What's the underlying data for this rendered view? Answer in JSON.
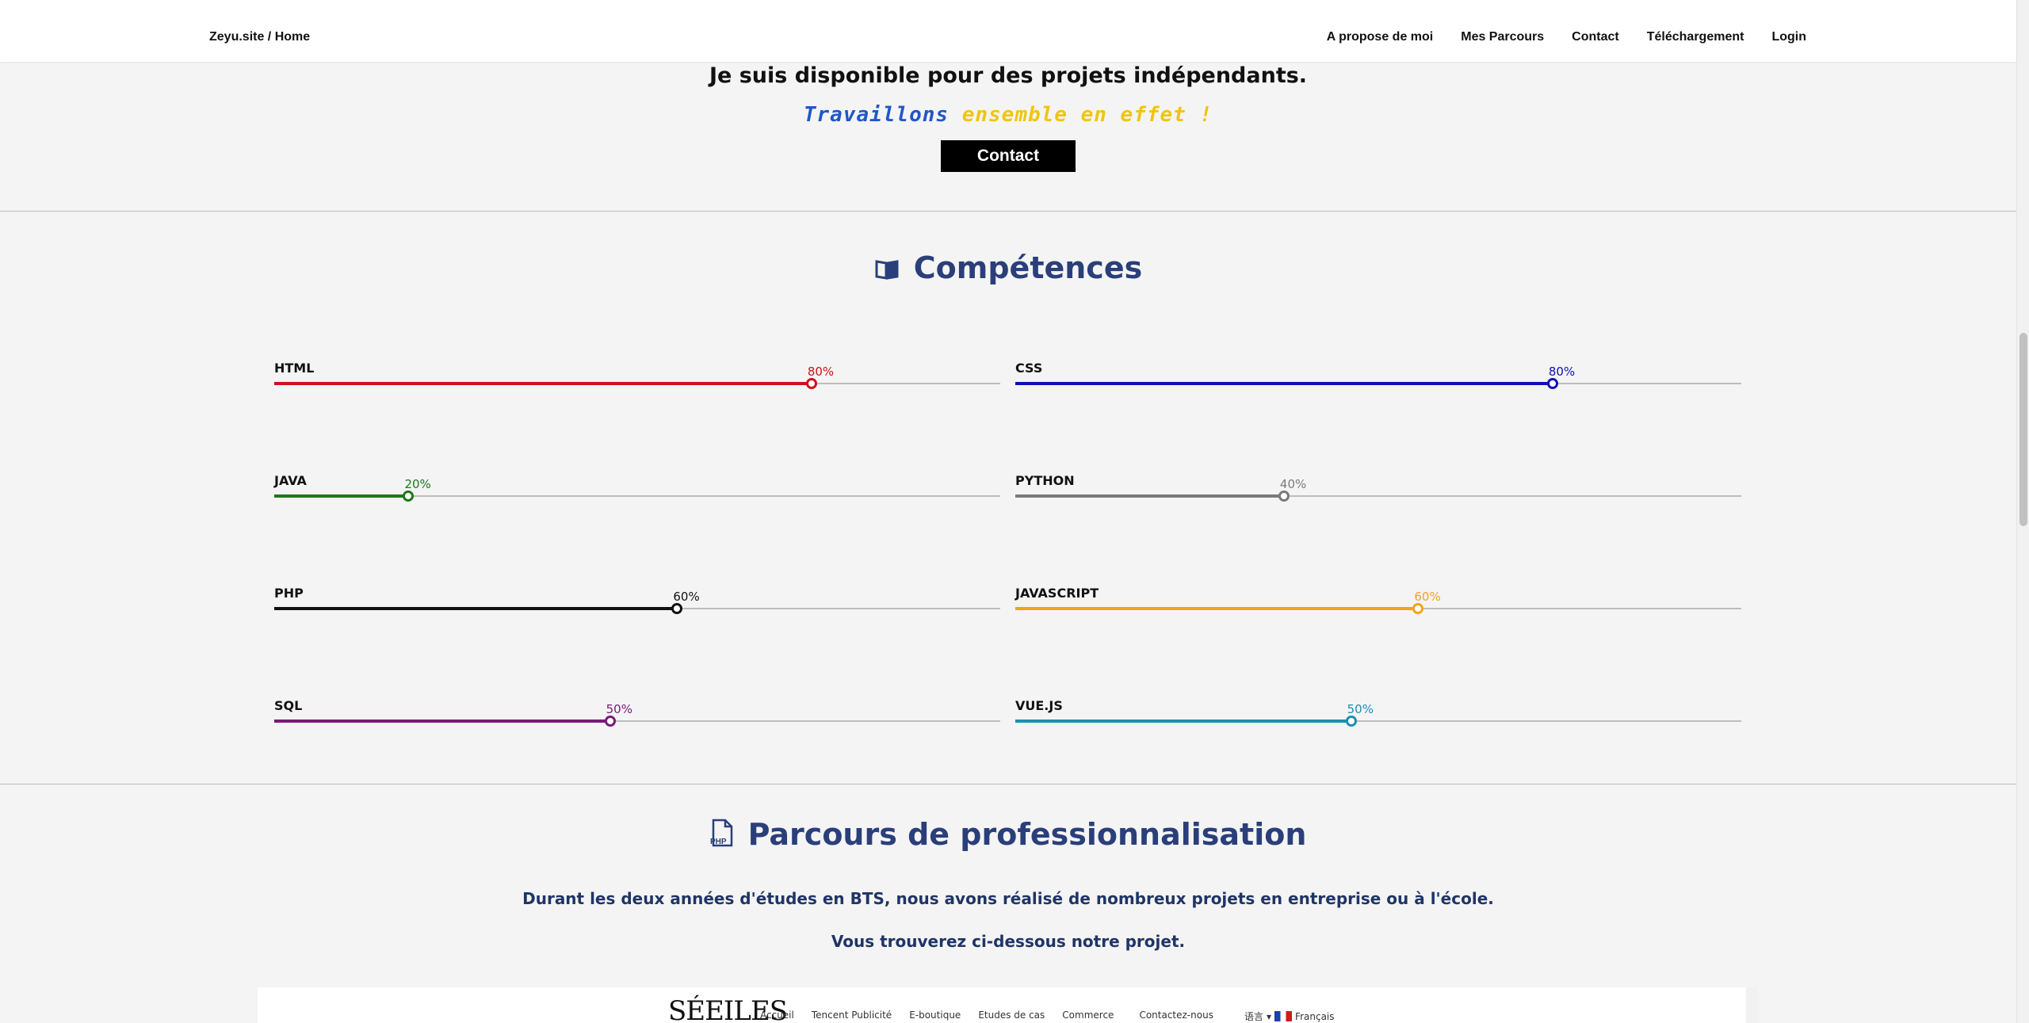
{
  "nav": {
    "brand": "Zeyu.site / Home",
    "links": [
      "A propose de moi",
      "Mes Parcours",
      "Contact",
      "Téléchargement",
      "Login"
    ]
  },
  "hero": {
    "title": "Je suis disponible pour des projets indépendants.",
    "subtitle_part1": "Travaillons",
    "subtitle_part2": "ensemble en effet !",
    "contact_button": "Contact"
  },
  "competences": {
    "title": "Compétences",
    "icon": "book-icon",
    "skills": [
      {
        "name": "HTML",
        "percent_label": "80%",
        "level": 0.8,
        "color": "#d0101b"
      },
      {
        "name": "CSS",
        "percent_label": "80%",
        "level": 0.8,
        "color": "#1010b8"
      },
      {
        "name": "JAVA",
        "percent_label": "20%",
        "level": 0.2,
        "color": "#1a7a1a"
      },
      {
        "name": "PYTHON",
        "percent_label": "40%",
        "level": 0.4,
        "color": "#7a7a7a"
      },
      {
        "name": "PHP",
        "percent_label": "60%",
        "level": 0.6,
        "color": "#111111"
      },
      {
        "name": "JAVASCRIPT",
        "percent_label": "60%",
        "level": 0.6,
        "color": "#f0a41c"
      },
      {
        "name": "SQL",
        "percent_label": "50%",
        "level": 0.5,
        "color": "#7a1a78"
      },
      {
        "name": "VUE.JS",
        "percent_label": "50%",
        "level": 0.5,
        "color": "#1b8fb0"
      }
    ]
  },
  "parcours": {
    "title": "Parcours de professionnalisation",
    "icon": "php-file-icon",
    "icon_label": "PHP",
    "paragraph1": "Durant les deux années d'études en BTS, nous avons réalisé de nombreux projets en entreprise ou à l'école.",
    "paragraph2": "Vous trouverez ci-dessous notre projet."
  },
  "preview": {
    "logo": "SÉEILES",
    "nav": [
      "Accueil",
      "Tencent Publicité",
      "E-boutique",
      "Etudes de cas",
      "Commerce",
      "Contactez-nous"
    ],
    "lang_icon": "语言",
    "lang": "Français"
  }
}
